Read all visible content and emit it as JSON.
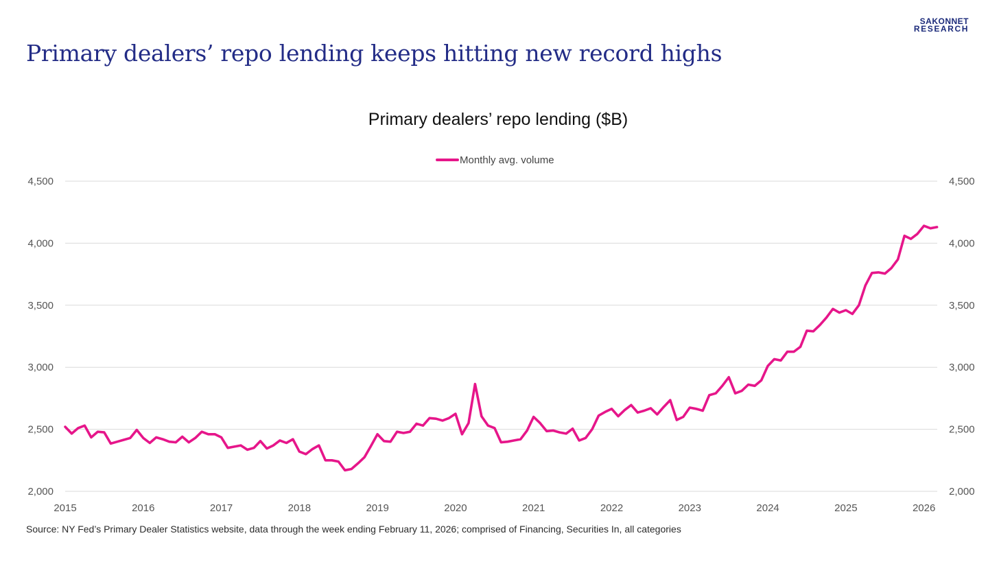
{
  "brand": {
    "line1": "SAKONNET",
    "line2": "RESEARCH"
  },
  "headline": "Primary dealers’ repo lending keeps hitting new record highs",
  "source": "Source: NY Fed’s Primary Dealer Statistics website, data through the week ending February 11, 2026; comprised of Financing, Securities In, all categories",
  "colors": {
    "series": "#e6168a",
    "grid": "#d9d9d9",
    "headline": "#232c86",
    "brand": "#1b2a7a"
  },
  "chart_data": {
    "type": "line",
    "title": "Primary dealers’ repo lending ($B)",
    "xlabel": "",
    "ylabel": "",
    "ylim": [
      2000,
      4500
    ],
    "yticks": [
      2000,
      2500,
      3000,
      3500,
      4000,
      4500
    ],
    "ytick_labels": [
      "2,000",
      "2,500",
      "3,000",
      "3,500",
      "4,000",
      "4,500"
    ],
    "xlim": [
      2015.0,
      2026.17
    ],
    "xticks": [
      2015,
      2016,
      2017,
      2018,
      2019,
      2020,
      2021,
      2022,
      2023,
      2024,
      2025,
      2026
    ],
    "xtick_labels": [
      "2015",
      "2016",
      "2017",
      "2018",
      "2019",
      "2020",
      "2021",
      "2022",
      "2023",
      "2024",
      "2025",
      "2026"
    ],
    "dual_y_axis": true,
    "grid": true,
    "legend_position": "top-center",
    "series": [
      {
        "name": "Monthly avg. volume",
        "color": "#e6168a",
        "x_start": 2015.0,
        "x_step": 0.08333,
        "values": [
          2520,
          2465,
          2510,
          2530,
          2435,
          2480,
          2475,
          2385,
          2400,
          2415,
          2430,
          2495,
          2430,
          2390,
          2435,
          2420,
          2400,
          2395,
          2440,
          2395,
          2430,
          2480,
          2460,
          2460,
          2435,
          2350,
          2360,
          2370,
          2335,
          2350,
          2405,
          2345,
          2370,
          2410,
          2390,
          2420,
          2320,
          2300,
          2340,
          2370,
          2250,
          2250,
          2240,
          2170,
          2180,
          2225,
          2275,
          2365,
          2460,
          2405,
          2400,
          2480,
          2470,
          2480,
          2545,
          2530,
          2590,
          2585,
          2570,
          2590,
          2625,
          2460,
          2550,
          2865,
          2605,
          2530,
          2510,
          2395,
          2400,
          2410,
          2420,
          2490,
          2600,
          2550,
          2485,
          2490,
          2475,
          2465,
          2505,
          2410,
          2430,
          2500,
          2610,
          2640,
          2665,
          2605,
          2655,
          2695,
          2635,
          2650,
          2670,
          2620,
          2680,
          2735,
          2575,
          2600,
          2675,
          2665,
          2650,
          2775,
          2790,
          2850,
          2920,
          2790,
          2810,
          2860,
          2850,
          2895,
          3010,
          3065,
          3055,
          3125,
          3125,
          3165,
          3295,
          3290,
          3340,
          3400,
          3470,
          3440,
          3460,
          3430,
          3500,
          3660,
          3760,
          3765,
          3755,
          3800,
          3870,
          4060,
          4035,
          4075,
          4140,
          4120,
          4130
        ]
      }
    ]
  }
}
